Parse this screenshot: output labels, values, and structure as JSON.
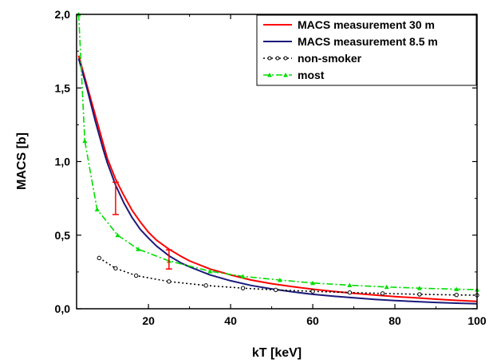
{
  "chart_data": {
    "type": "line",
    "title": "",
    "xlabel": "kT [keV]",
    "ylabel": "MACS [b]",
    "xlim": [
      2.5,
      100
    ],
    "ylim": [
      0.0,
      2.0
    ],
    "x_ticks": [
      20,
      40,
      60,
      80,
      100
    ],
    "x_tick_labels": [
      "20",
      "40",
      "60",
      "80",
      "100"
    ],
    "y_ticks": [
      0.0,
      0.5,
      1.0,
      1.5,
      2.0
    ],
    "y_tick_labels": [
      "0,0",
      "0,5",
      "1,0",
      "1,5",
      "2,0"
    ],
    "grid": false,
    "legend_position": "top-right",
    "series": [
      {
        "name": "MACS measurement 30 m",
        "color": "#ff0000",
        "style": "solid",
        "marker": "none",
        "points": [
          [
            3,
            1.72
          ],
          [
            5,
            1.52
          ],
          [
            7,
            1.32
          ],
          [
            9,
            1.12
          ],
          [
            10,
            1.02
          ],
          [
            12,
            0.88
          ],
          [
            14,
            0.77
          ],
          [
            16,
            0.67
          ],
          [
            18,
            0.59
          ],
          [
            20,
            0.52
          ],
          [
            22,
            0.465
          ],
          [
            25,
            0.405
          ],
          [
            28,
            0.355
          ],
          [
            30,
            0.325
          ],
          [
            35,
            0.27
          ],
          [
            40,
            0.23
          ],
          [
            45,
            0.195
          ],
          [
            50,
            0.17
          ],
          [
            55,
            0.15
          ],
          [
            60,
            0.133
          ],
          [
            65,
            0.118
          ],
          [
            70,
            0.105
          ],
          [
            75,
            0.093
          ],
          [
            80,
            0.083
          ],
          [
            85,
            0.074
          ],
          [
            90,
            0.065
          ],
          [
            95,
            0.057
          ],
          [
            100,
            0.05
          ]
        ]
      },
      {
        "name": "MACS measurement 8.5 m",
        "color": "#1a1a7a",
        "style": "solid",
        "marker": "none",
        "points": [
          [
            3,
            1.7
          ],
          [
            5,
            1.5
          ],
          [
            7,
            1.28
          ],
          [
            9,
            1.08
          ],
          [
            10,
            0.99
          ],
          [
            12,
            0.84
          ],
          [
            14,
            0.72
          ],
          [
            16,
            0.62
          ],
          [
            18,
            0.54
          ],
          [
            20,
            0.48
          ],
          [
            22,
            0.425
          ],
          [
            25,
            0.36
          ],
          [
            28,
            0.31
          ],
          [
            30,
            0.285
          ],
          [
            35,
            0.23
          ],
          [
            40,
            0.19
          ],
          [
            45,
            0.158
          ],
          [
            50,
            0.135
          ],
          [
            55,
            0.115
          ],
          [
            60,
            0.098
          ],
          [
            65,
            0.085
          ],
          [
            70,
            0.074
          ],
          [
            75,
            0.064
          ],
          [
            80,
            0.056
          ],
          [
            85,
            0.049
          ],
          [
            90,
            0.043
          ],
          [
            95,
            0.038
          ],
          [
            100,
            0.034
          ]
        ]
      },
      {
        "name": "non-smoker",
        "color": "#000000",
        "style": "dotted",
        "marker": "open-circle",
        "points": [
          [
            8,
            0.345
          ],
          [
            12,
            0.275
          ],
          [
            17,
            0.225
          ],
          [
            25,
            0.185
          ],
          [
            34,
            0.158
          ],
          [
            43,
            0.14
          ],
          [
            51,
            0.128
          ],
          [
            60,
            0.118
          ],
          [
            69,
            0.11
          ],
          [
            77,
            0.104
          ],
          [
            86,
            0.098
          ],
          [
            95,
            0.094
          ],
          [
            100,
            0.092
          ]
        ]
      },
      {
        "name": "most",
        "color": "#00dd00",
        "style": "dash-dot",
        "marker": "triangle",
        "points": [
          [
            3,
            2.0
          ],
          [
            4.5,
            1.14
          ],
          [
            7.5,
            0.675
          ],
          [
            12.5,
            0.5
          ],
          [
            17.5,
            0.405
          ],
          [
            25,
            0.325
          ],
          [
            35,
            0.255
          ],
          [
            43,
            0.22
          ],
          [
            52,
            0.195
          ],
          [
            60,
            0.175
          ],
          [
            69,
            0.16
          ],
          [
            78,
            0.148
          ],
          [
            86,
            0.14
          ],
          [
            95,
            0.133
          ],
          [
            100,
            0.13
          ]
        ]
      }
    ],
    "error_bars": [
      {
        "series": "MACS measurement 30 m",
        "x": 12,
        "y": 0.75,
        "low": 0.64,
        "high": 0.86,
        "color": "#ff0000"
      },
      {
        "series": "MACS measurement 30 m",
        "x": 25,
        "y": 0.33,
        "low": 0.27,
        "high": 0.4,
        "color": "#ff0000"
      }
    ]
  }
}
